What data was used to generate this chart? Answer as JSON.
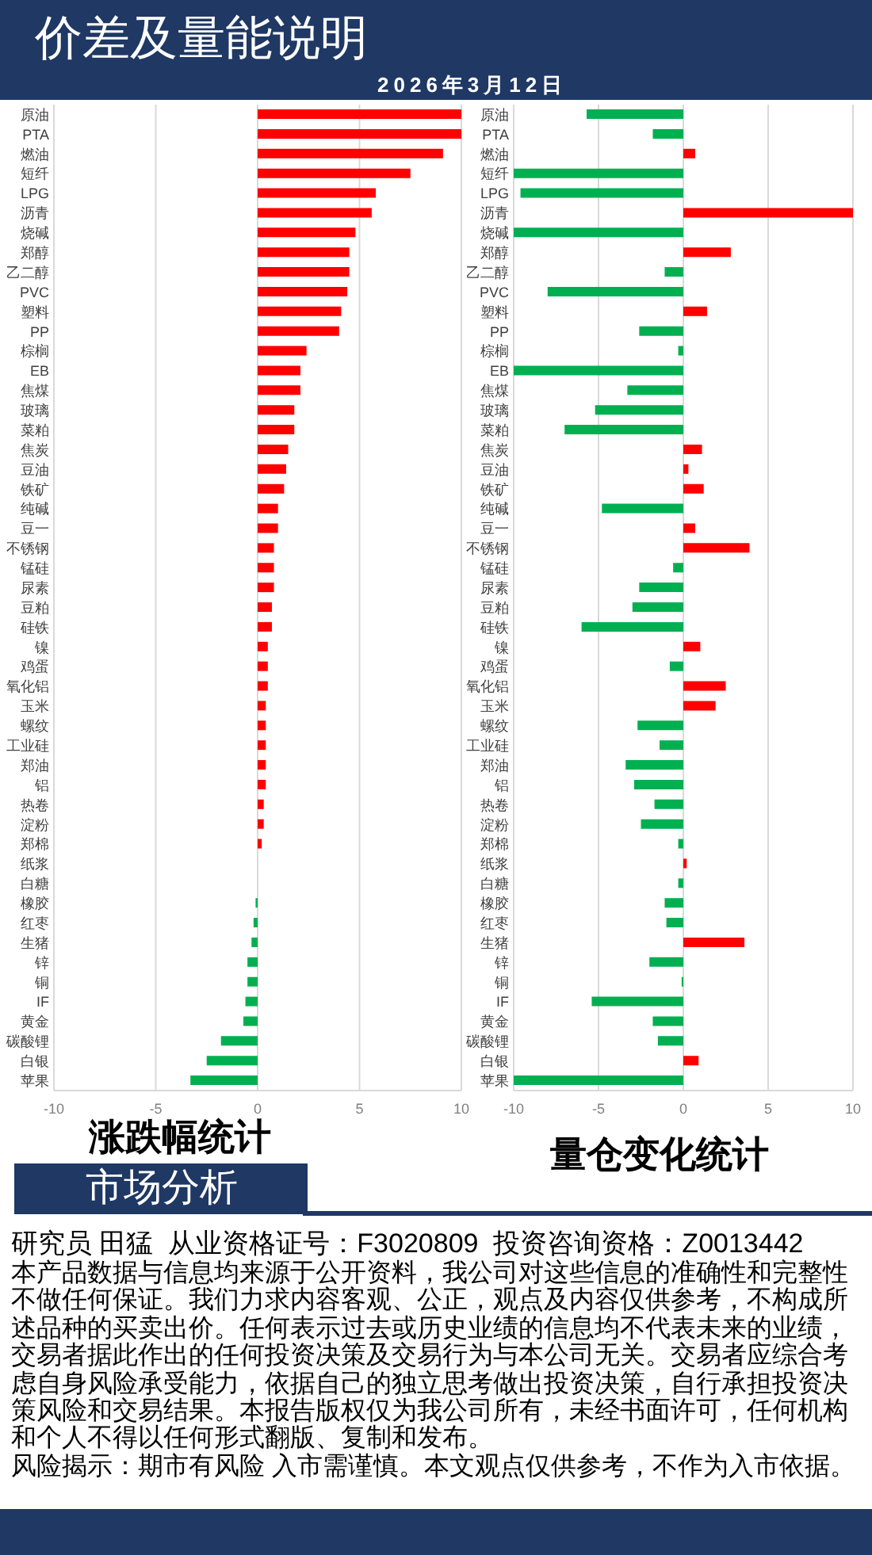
{
  "chart_data": [
    {
      "type": "other",
      "title": "价差及量能说明",
      "subtitle": "2026年3月12日"
    },
    {
      "type": "bar",
      "orientation": "horizontal",
      "title": "涨跌幅统计",
      "categories": [
        "原油",
        "PTA",
        "燃油",
        "短纤",
        "LPG",
        "沥青",
        "烧碱",
        "郑醇",
        "乙二醇",
        "PVC",
        "塑料",
        "PP",
        "棕榈",
        "EB",
        "焦煤",
        "玻璃",
        "菜粕",
        "焦炭",
        "豆油",
        "铁矿",
        "纯碱",
        "豆一",
        "不锈钢",
        "锰硅",
        "尿素",
        "豆粕",
        "硅铁",
        "镍",
        "鸡蛋",
        "氧化铝",
        "玉米",
        "螺纹",
        "工业硅",
        "郑油",
        "铝",
        "热卷",
        "淀粉",
        "郑棉",
        "纸浆",
        "白糖",
        "橡胶",
        "红枣",
        "生猪",
        "锌",
        "铜",
        "IF",
        "黄金",
        "碳酸锂",
        "白银",
        "苹果"
      ],
      "values": [
        10,
        10,
        9.1,
        7.5,
        5.8,
        5.6,
        4.8,
        4.5,
        4.5,
        4.4,
        4.1,
        4.0,
        2.4,
        2.1,
        2.1,
        1.8,
        1.8,
        1.5,
        1.4,
        1.3,
        1.0,
        1.0,
        0.8,
        0.8,
        0.8,
        0.7,
        0.7,
        0.5,
        0.5,
        0.5,
        0.4,
        0.4,
        0.4,
        0.4,
        0.4,
        0.3,
        0.3,
        0.2,
        0,
        0,
        -0.1,
        -0.2,
        -0.3,
        -0.5,
        -0.5,
        -0.6,
        -0.7,
        -1.8,
        -2.5,
        -3.3
      ],
      "colors": [
        "#ff0000",
        "#ff0000",
        "#ff0000",
        "#ff0000",
        "#ff0000",
        "#ff0000",
        "#ff0000",
        "#ff0000",
        "#ff0000",
        "#ff0000",
        "#ff0000",
        "#ff0000",
        "#ff0000",
        "#ff0000",
        "#ff0000",
        "#ff0000",
        "#ff0000",
        "#ff0000",
        "#ff0000",
        "#ff0000",
        "#ff0000",
        "#ff0000",
        "#ff0000",
        "#ff0000",
        "#ff0000",
        "#ff0000",
        "#ff0000",
        "#ff0000",
        "#ff0000",
        "#ff0000",
        "#ff0000",
        "#ff0000",
        "#ff0000",
        "#ff0000",
        "#ff0000",
        "#ff0000",
        "#ff0000",
        "#ff0000",
        "#ff0000",
        "#ff0000",
        "#00b050",
        "#00b050",
        "#00b050",
        "#00b050",
        "#00b050",
        "#00b050",
        "#00b050",
        "#00b050",
        "#00b050",
        "#00b050"
      ],
      "xlim": [
        -10,
        10
      ],
      "xticks": [
        -10,
        -5,
        0,
        5,
        10
      ],
      "grid": "x"
    },
    {
      "type": "bar",
      "orientation": "horizontal",
      "title": "量仓变化统计",
      "categories": [
        "原油",
        "PTA",
        "燃油",
        "短纤",
        "LPG",
        "沥青",
        "烧碱",
        "郑醇",
        "乙二醇",
        "PVC",
        "塑料",
        "PP",
        "棕榈",
        "EB",
        "焦煤",
        "玻璃",
        "菜粕",
        "焦炭",
        "豆油",
        "铁矿",
        "纯碱",
        "豆一",
        "不锈钢",
        "锰硅",
        "尿素",
        "豆粕",
        "硅铁",
        "镍",
        "鸡蛋",
        "氧化铝",
        "玉米",
        "螺纹",
        "工业硅",
        "郑油",
        "铝",
        "热卷",
        "淀粉",
        "郑棉",
        "纸浆",
        "白糖",
        "橡胶",
        "红枣",
        "生猪",
        "锌",
        "铜",
        "IF",
        "黄金",
        "碳酸锂",
        "白银",
        "苹果"
      ],
      "values": [
        -5.7,
        -1.8,
        0.7,
        -10,
        -9.6,
        10,
        -10,
        2.8,
        -1.1,
        -8.0,
        1.4,
        -2.6,
        -0.3,
        -10,
        -3.3,
        -5.2,
        -7.0,
        1.1,
        0.3,
        1.2,
        -4.8,
        0.7,
        3.9,
        -0.6,
        -2.6,
        -3.0,
        -6.0,
        1.0,
        -0.8,
        2.5,
        1.9,
        -2.7,
        -1.4,
        -3.4,
        -2.9,
        -1.7,
        -2.5,
        -0.3,
        0.2,
        -0.3,
        -1.1,
        -1.0,
        3.6,
        -2.0,
        -0.1,
        -5.4,
        -1.8,
        -1.5,
        0.9,
        -10
      ],
      "colors": [
        "#00b050",
        "#00b050",
        "#ff0000",
        "#00b050",
        "#00b050",
        "#ff0000",
        "#00b050",
        "#ff0000",
        "#00b050",
        "#00b050",
        "#ff0000",
        "#00b050",
        "#00b050",
        "#00b050",
        "#00b050",
        "#00b050",
        "#00b050",
        "#ff0000",
        "#ff0000",
        "#ff0000",
        "#00b050",
        "#ff0000",
        "#ff0000",
        "#00b050",
        "#00b050",
        "#00b050",
        "#00b050",
        "#ff0000",
        "#00b050",
        "#ff0000",
        "#ff0000",
        "#00b050",
        "#00b050",
        "#00b050",
        "#00b050",
        "#00b050",
        "#00b050",
        "#00b050",
        "#ff0000",
        "#00b050",
        "#00b050",
        "#00b050",
        "#ff0000",
        "#00b050",
        "#00b050",
        "#00b050",
        "#00b050",
        "#00b050",
        "#ff0000",
        "#00b050"
      ],
      "xlim": [
        -10,
        10
      ],
      "xticks": [
        -10,
        -5,
        0,
        5,
        10
      ],
      "grid": "x"
    },
    {
      "type": "other",
      "title": "市场分析",
      "annotations": [
        "研究员 田猛  从业资格证号：F3020809  投资咨询资格：Z0013442",
        "本产品数据与信息均来源于公开资料，我公司对这些信息的准确性和完整性不做任何保证。我们力求内容客观、公正，观点及内容仅供参考，不构成所述品种的买卖出价。任何表示过去或历史业绩的信息均不代表未来的业绩，交易者据此作出的任何投资决策及交易行为与本公司无关。交易者应综合考虑自身风险承受能力，依据自己的独立思考做出投资决策，自行承担投资决策风险和交易结果。本报告版权仅为我公司所有，未经书面许可，任何机构和个人不得以任何形式翻版、复制和发布。",
        "风险揭示：期市有风险 入市需谨慎。本文观点仅供参考，不作为入市依据。"
      ]
    }
  ]
}
